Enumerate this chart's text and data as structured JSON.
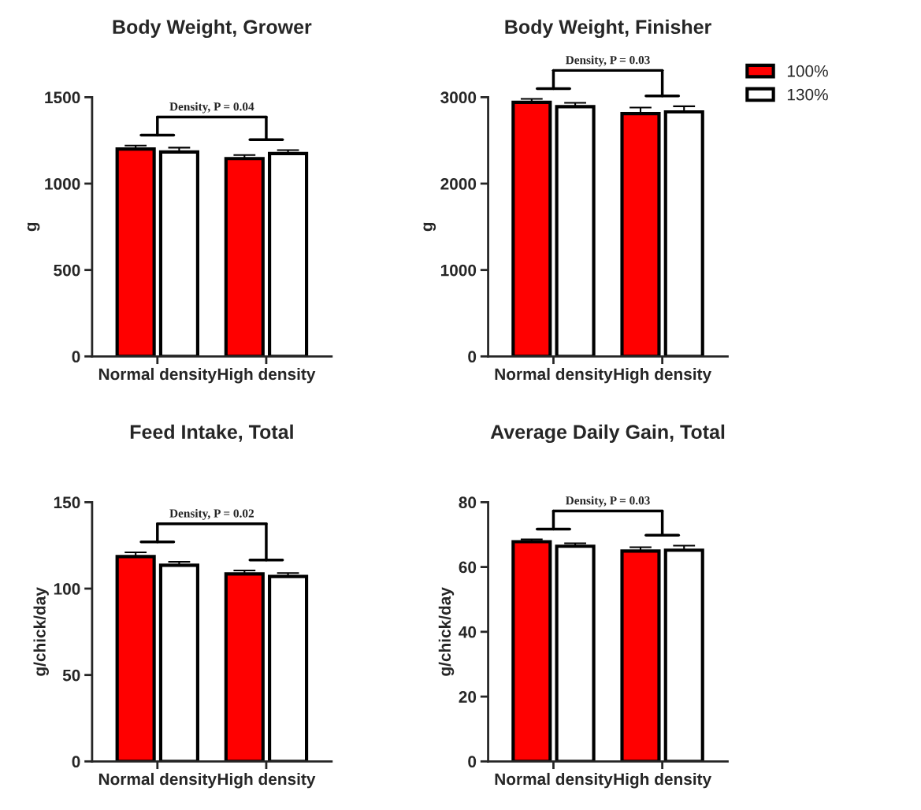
{
  "chart_data": [
    {
      "type": "bar",
      "title": "Body Weight, Grower",
      "ylabel": "g",
      "categories": [
        "Normal density",
        "High density"
      ],
      "ylim": [
        0,
        1500
      ],
      "yticks": [
        0,
        500,
        1000,
        1500
      ],
      "grid": false,
      "legend": false,
      "annotations": [
        "Density, P = 0.04"
      ],
      "series": [
        {
          "color": "#ff0000",
          "values": [
            1200,
            1145
          ],
          "errors": [
            20,
            20
          ]
        },
        {
          "color": "#ffffff",
          "values": [
            1183,
            1174
          ],
          "errors": [
            25,
            20
          ]
        }
      ]
    },
    {
      "type": "bar",
      "title": "Body Weight, Finisher",
      "ylabel": "g",
      "categories": [
        "Normal density",
        "High density"
      ],
      "ylim": [
        0,
        3000
      ],
      "yticks": [
        0,
        1000,
        2000,
        3000
      ],
      "grid": false,
      "legend": "right",
      "annotations": [
        "Density, P = 0.03"
      ],
      "series": [
        {
          "name": "100%",
          "color": "#ff0000",
          "values": [
            2940,
            2810
          ],
          "errors": [
            40,
            70
          ]
        },
        {
          "name": "130%",
          "color": "#ffffff",
          "values": [
            2890,
            2830
          ],
          "errors": [
            45,
            65
          ]
        }
      ]
    },
    {
      "type": "bar",
      "title": "Feed Intake, Total",
      "ylabel": "g/chick/day",
      "categories": [
        "Normal density",
        "High density"
      ],
      "ylim": [
        0,
        150
      ],
      "yticks": [
        0,
        50,
        100,
        150
      ],
      "grid": false,
      "legend": false,
      "annotations": [
        "Density, P = 0.02"
      ],
      "series": [
        {
          "color": "#ff0000",
          "values": [
            118.5,
            108.5
          ],
          "errors": [
            2.5,
            2
          ]
        },
        {
          "color": "#ffffff",
          "values": [
            113.5,
            107
          ],
          "errors": [
            2,
            2
          ]
        }
      ]
    },
    {
      "type": "bar",
      "title": "Average Daily Gain, Total",
      "ylabel": "g/chick/day",
      "categories": [
        "Normal density",
        "High density"
      ],
      "ylim": [
        0,
        80
      ],
      "yticks": [
        0,
        20,
        40,
        60,
        80
      ],
      "grid": false,
      "legend": false,
      "annotations": [
        "Density, P = 0.03"
      ],
      "series": [
        {
          "color": "#ff0000",
          "values": [
            67.8,
            64.9
          ],
          "errors": [
            0.7,
            1.2
          ]
        },
        {
          "color": "#ffffff",
          "values": [
            66.4,
            65.2
          ],
          "errors": [
            0.9,
            1.4
          ]
        }
      ]
    }
  ]
}
